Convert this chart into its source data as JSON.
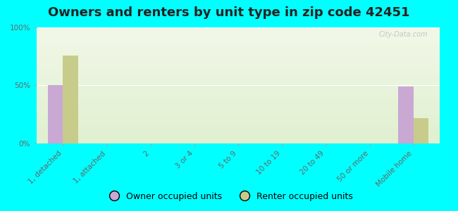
{
  "title": "Owners and renters by unit type in zip code 42451",
  "categories": [
    "1, detached",
    "1, attached",
    "2",
    "3 or 4",
    "5 to 9",
    "10 to 19",
    "20 to 49",
    "50 or more",
    "Mobile home"
  ],
  "owner_values": [
    50,
    0,
    0,
    0,
    0,
    0,
    0,
    0,
    49
  ],
  "renter_values": [
    76,
    0,
    0,
    0,
    0,
    0,
    0,
    0,
    22
  ],
  "owner_color": "#c9a8d4",
  "renter_color": "#c8cc8a",
  "background_color": "#00ffff",
  "yticks": [
    0,
    50,
    100
  ],
  "ytick_labels": [
    "0%",
    "50%",
    "100%"
  ],
  "ylim": [
    0,
    100
  ],
  "bar_width": 0.35,
  "legend_owner": "Owner occupied units",
  "legend_renter": "Renter occupied units",
  "title_fontsize": 13,
  "axis_fontsize": 7.5,
  "legend_fontsize": 9
}
